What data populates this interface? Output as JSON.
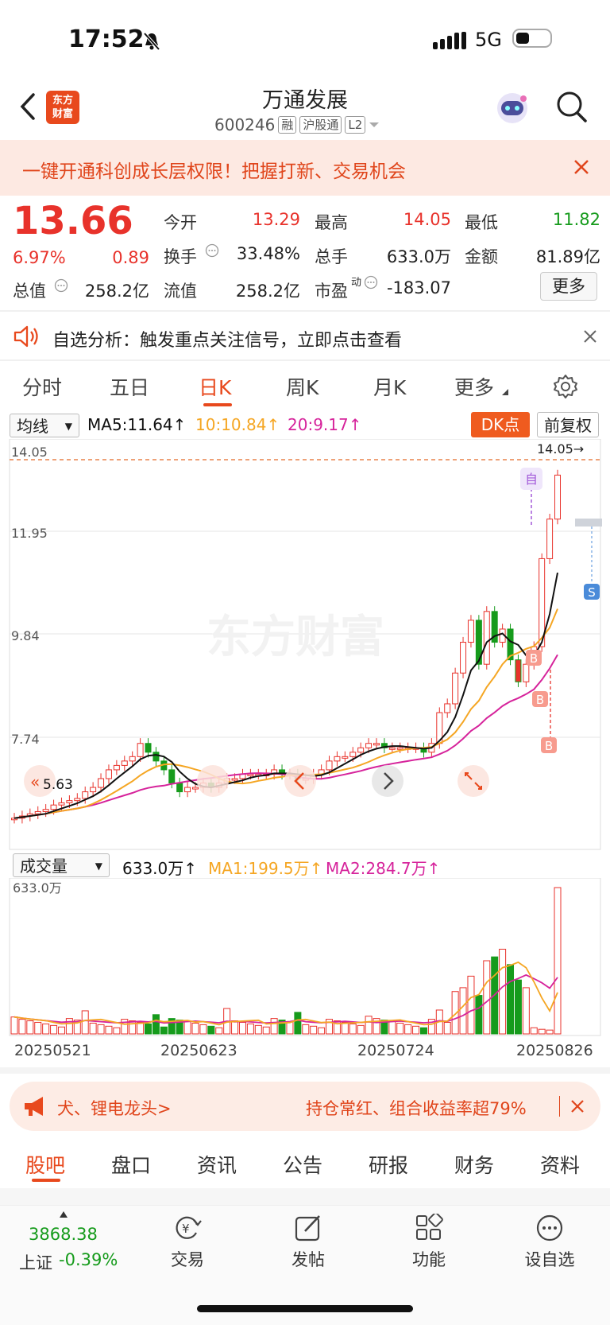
{
  "status": {
    "time": "17:52",
    "network": "5G"
  },
  "header": {
    "logo_line1": "东方",
    "logo_line2": "财富",
    "title": "万通发展",
    "code": "600246",
    "tags": [
      "融",
      "沪股通",
      "L2"
    ]
  },
  "banner": {
    "text": "一键开通科创成长层权限！把握打新、交易机会"
  },
  "quote": {
    "price": "13.66",
    "change_pct": "6.97%",
    "change": "0.89",
    "open_label": "今开",
    "open": "13.29",
    "high_label": "最高",
    "high": "14.05",
    "low_label": "最低",
    "low": "11.82",
    "turnover_label": "换手",
    "turnover": "33.48%",
    "volume_label": "总手",
    "volume": "633.0万",
    "amount_label": "金额",
    "amount": "81.89亿",
    "mktcap_label": "总值",
    "mktcap": "258.2亿",
    "float_label": "流值",
    "float": "258.2亿",
    "pe_label": "市盈",
    "pe_sup": "动",
    "pe": "-183.07",
    "more_label": "更多"
  },
  "analysis": {
    "text": "自选分析：触发重点关注信号，立即点击查看"
  },
  "tabs": [
    "分时",
    "五日",
    "日K",
    "周K",
    "月K",
    "更多"
  ],
  "active_tab": "日K",
  "kline": {
    "ma_select": "均线",
    "ma5": "MA5:11.64↑",
    "ma10": "10:10.84↑",
    "ma20": "20:9.17↑",
    "dk_label": "DK点",
    "adjust_label": "前复权",
    "y_labels": [
      "14.05",
      "11.95",
      "9.84",
      "7.74"
    ],
    "high_marker": "14.05→",
    "low_marker": "5.63",
    "watermark": "东方财富",
    "self_marker": "自",
    "signals": [
      "B",
      "B",
      "B",
      "S"
    ],
    "colors": {
      "up": "#e8322b",
      "down": "#169b1c",
      "ma5": "#111111",
      "ma10": "#f5a623",
      "ma20": "#d6239b"
    }
  },
  "volume": {
    "select": "成交量",
    "vol": "633.0万↑",
    "ma1": "MA1:199.5万↑",
    "ma2": "MA2:284.7万↑",
    "top_label": "633.0万"
  },
  "dates": [
    "20250521",
    "20250623",
    "20250724",
    "20250826"
  ],
  "promo": {
    "left": "犬、锂电龙头>",
    "right": "持仓常红、组合收益率超79%"
  },
  "bottom_tabs": [
    "股吧",
    "盘口",
    "资讯",
    "公告",
    "研报",
    "财务",
    "资料"
  ],
  "bottom_bar": {
    "index_value": "3868.38",
    "index_name": "上证",
    "index_change": "-0.39%",
    "items": [
      "交易",
      "发帖",
      "功能",
      "设自选"
    ]
  }
}
